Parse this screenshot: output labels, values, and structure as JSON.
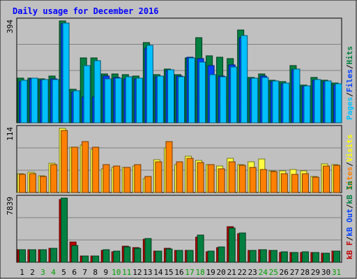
{
  "chart_data": {
    "type": "bar",
    "title": "Daily usage for December 2016",
    "categories": [
      "1",
      "2",
      "3",
      "4",
      "5",
      "6",
      "7",
      "8",
      "9",
      "10",
      "11",
      "12",
      "13",
      "14",
      "15",
      "16",
      "17",
      "18",
      "19",
      "20",
      "21",
      "22",
      "23",
      "24",
      "25",
      "26",
      "27",
      "28",
      "29",
      "30",
      "31"
    ],
    "weekend_days": [
      "3",
      "4",
      "10",
      "11",
      "17",
      "18",
      "24",
      "25",
      "31"
    ],
    "panels": [
      {
        "name": "requests",
        "max_label": "394",
        "ymax": 394,
        "axis_labels": [
          {
            "text": "Hits",
            "color": "#008040"
          },
          {
            "text": "Files",
            "color": "#0040ff"
          },
          {
            "text": "Pages",
            "color": "#00c0ff"
          }
        ],
        "series": [
          {
            "name": "Hits",
            "color": "#008040",
            "values": [
              172,
              174,
              170,
              180,
              394,
              130,
              250,
              252,
              190,
              188,
              186,
              182,
              310,
              185,
              209,
              185,
              250,
              330,
              260,
              255,
              247,
              359,
              175,
              190,
              165,
              160,
              221,
              145,
              175,
              165,
              155
            ]
          },
          {
            "name": "Files",
            "color": "#0040ff",
            "values": [
              160,
              170,
              165,
              170,
              383,
              118,
              100,
              100,
              180,
              176,
              170,
              170,
              290,
              178,
              202,
              180,
              255,
              248,
              220,
              180,
              223,
              329,
              170,
              180,
              160,
              150,
              205,
              140,
              165,
              160,
              147
            ]
          },
          {
            "name": "Pages",
            "color": "#00c0ff",
            "values": [
              165,
              172,
              166,
              168,
              385,
              125,
              222,
              240,
              170,
              174,
              178,
              174,
              300,
              180,
              205,
              178,
              250,
              235,
              185,
              178,
              215,
              338,
              173,
              175,
              162,
              154,
              208,
              142,
              168,
              162,
              150
            ]
          }
        ]
      },
      {
        "name": "visits",
        "max_label": "114",
        "ymax": 114,
        "axis_labels": [
          {
            "text": "Visits",
            "color": "#ffff00"
          },
          {
            "text": "Sites",
            "color": "#ff8000"
          }
        ],
        "series": [
          {
            "name": "Visits",
            "color": "#ffff40",
            "values": [
              34,
              36,
              30,
              52,
              114,
              80,
              84,
              77,
              42,
              45,
              44,
              47,
              25,
              58,
              79,
              50,
              65,
              57,
              50,
              47,
              61,
              49,
              55,
              60,
              39,
              38,
              41,
              38,
              29,
              51,
              50
            ]
          },
          {
            "name": "Sites",
            "color": "#ff8000",
            "values": [
              32,
              34,
              28,
              50,
              110,
              80,
              90,
              80,
              50,
              47,
              45,
              50,
              28,
              55,
              90,
              55,
              61,
              53,
              49,
              42,
              55,
              48,
              45,
              41,
              37,
              33,
              32,
              33,
              27,
              47,
              48
            ]
          }
        ]
      },
      {
        "name": "traffic",
        "max_label": "7839",
        "ymax": 7839,
        "axis_labels": [
          {
            "text": "kB In",
            "color": "#008040"
          },
          {
            "text": "kB Out",
            "color": "#0040ff"
          },
          {
            "text": "kB F",
            "color": "#c00000"
          }
        ],
        "series": [
          {
            "name": "kB F",
            "color": "#c00000",
            "values": [
              1510,
              1510,
              1510,
              1680,
              7630,
              2500,
              800,
              780,
              1420,
              1310,
              2000,
              1760,
              2800,
              1360,
              1720,
              1420,
              1420,
              3100,
              1260,
              1800,
              4380,
              3500,
              1470,
              1550,
              1450,
              1200,
              1200,
              1200,
              1170,
              1120,
              1350
            ]
          },
          {
            "name": "kB In",
            "color": "#008040",
            "values": [
              1500,
              1500,
              1500,
              1700,
              7839,
              2080,
              780,
              800,
              1500,
              1380,
              1900,
              1720,
              2900,
              1380,
              1650,
              1420,
              1440,
              3350,
              1380,
              1850,
              4200,
              3550,
              1480,
              1530,
              1460,
              1250,
              1200,
              1250,
              1200,
              1150,
              1350
            ]
          }
        ]
      }
    ]
  }
}
